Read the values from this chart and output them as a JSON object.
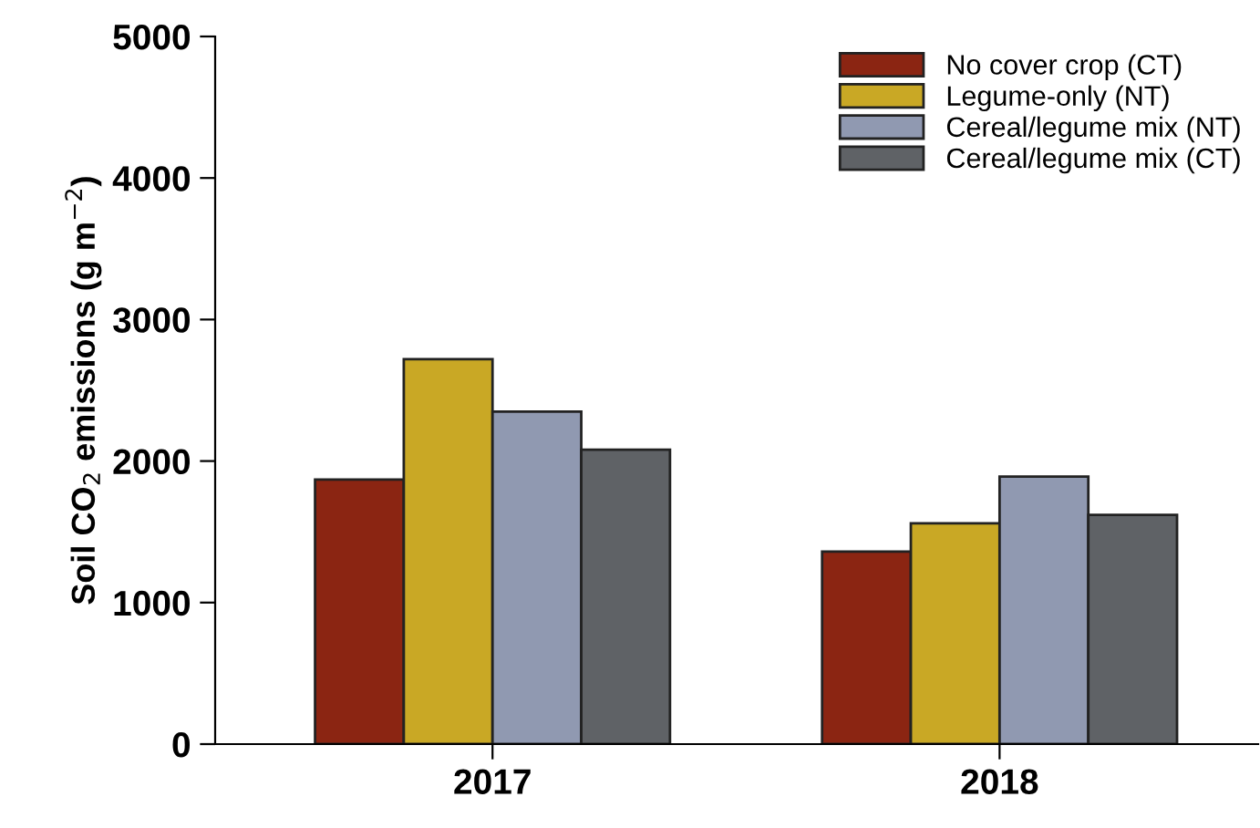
{
  "chart_data": {
    "type": "bar",
    "ylabel": "Soil CO$_{2}$ emissions (g m$^{−2}$)",
    "categories": [
      "2017",
      "2018"
    ],
    "series": [
      {
        "name": "No cover crop (CT)",
        "color": "#8b2512",
        "values": [
          1870,
          1360
        ]
      },
      {
        "name": "Legume-only (NT)",
        "color": "#c9a825",
        "values": [
          2720,
          1560
        ]
      },
      {
        "name": "Cereal/legume mix (NT)",
        "color": "#9099b1",
        "values": [
          2350,
          1890
        ]
      },
      {
        "name": "Cereal/legume mix (CT)",
        "color": "#5f6266",
        "values": [
          2080,
          1620
        ]
      }
    ],
    "ylim": [
      0,
      5000
    ],
    "yticks": [
      0,
      1000,
      2000,
      3000,
      4000,
      5000
    ],
    "grid": false,
    "legend": "top right"
  }
}
